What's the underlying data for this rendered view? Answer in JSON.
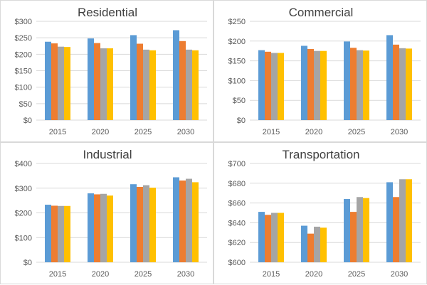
{
  "series_colors": [
    "#5b9bd5",
    "#ed7d31",
    "#a5a5a5",
    "#ffc000"
  ],
  "chart_data": [
    {
      "type": "bar",
      "title": "Residential",
      "categories": [
        "2015",
        "2020",
        "2025",
        "2030"
      ],
      "yticks": [
        "$0",
        "$50",
        "$100",
        "$150",
        "$200",
        "$250",
        "$300"
      ],
      "ylim": [
        0,
        300
      ],
      "grid": true,
      "series": [
        {
          "values": [
            238,
            248,
            258,
            273
          ]
        },
        {
          "values": [
            233,
            234,
            232,
            240
          ]
        },
        {
          "values": [
            223,
            218,
            214,
            214
          ]
        },
        {
          "values": [
            222,
            218,
            212,
            212
          ]
        }
      ]
    },
    {
      "type": "bar",
      "title": "Commercial",
      "categories": [
        "2015",
        "2020",
        "2025",
        "2030"
      ],
      "yticks": [
        "$0",
        "$50",
        "$100",
        "$150",
        "$200",
        "$250"
      ],
      "ylim": [
        0,
        250
      ],
      "grid": true,
      "series": [
        {
          "values": [
            177,
            188,
            199,
            215
          ]
        },
        {
          "values": [
            173,
            180,
            183,
            191
          ]
        },
        {
          "values": [
            170,
            175,
            177,
            182
          ]
        },
        {
          "values": [
            170,
            175,
            176,
            181
          ]
        }
      ]
    },
    {
      "type": "bar",
      "title": "Industrial",
      "categories": [
        "2015",
        "2020",
        "2025",
        "2030"
      ],
      "yticks": [
        "$0",
        "$100",
        "$200",
        "$300",
        "$400"
      ],
      "ylim": [
        0,
        400
      ],
      "grid": true,
      "series": [
        {
          "values": [
            233,
            279,
            316,
            344
          ]
        },
        {
          "values": [
            229,
            275,
            305,
            331
          ]
        },
        {
          "values": [
            228,
            277,
            312,
            338
          ]
        },
        {
          "values": [
            228,
            270,
            302,
            324
          ]
        }
      ]
    },
    {
      "type": "bar",
      "title": "Transportation",
      "categories": [
        "2015",
        "2020",
        "2025",
        "2030"
      ],
      "yticks": [
        "$600",
        "$620",
        "$640",
        "$660",
        "$680",
        "$700"
      ],
      "ylim": [
        600,
        700
      ],
      "grid": true,
      "series": [
        {
          "values": [
            651,
            637,
            664,
            681
          ]
        },
        {
          "values": [
            648,
            629,
            651,
            666
          ]
        },
        {
          "values": [
            650,
            636,
            666,
            684
          ]
        },
        {
          "values": [
            650,
            635,
            665,
            684
          ]
        }
      ]
    }
  ]
}
